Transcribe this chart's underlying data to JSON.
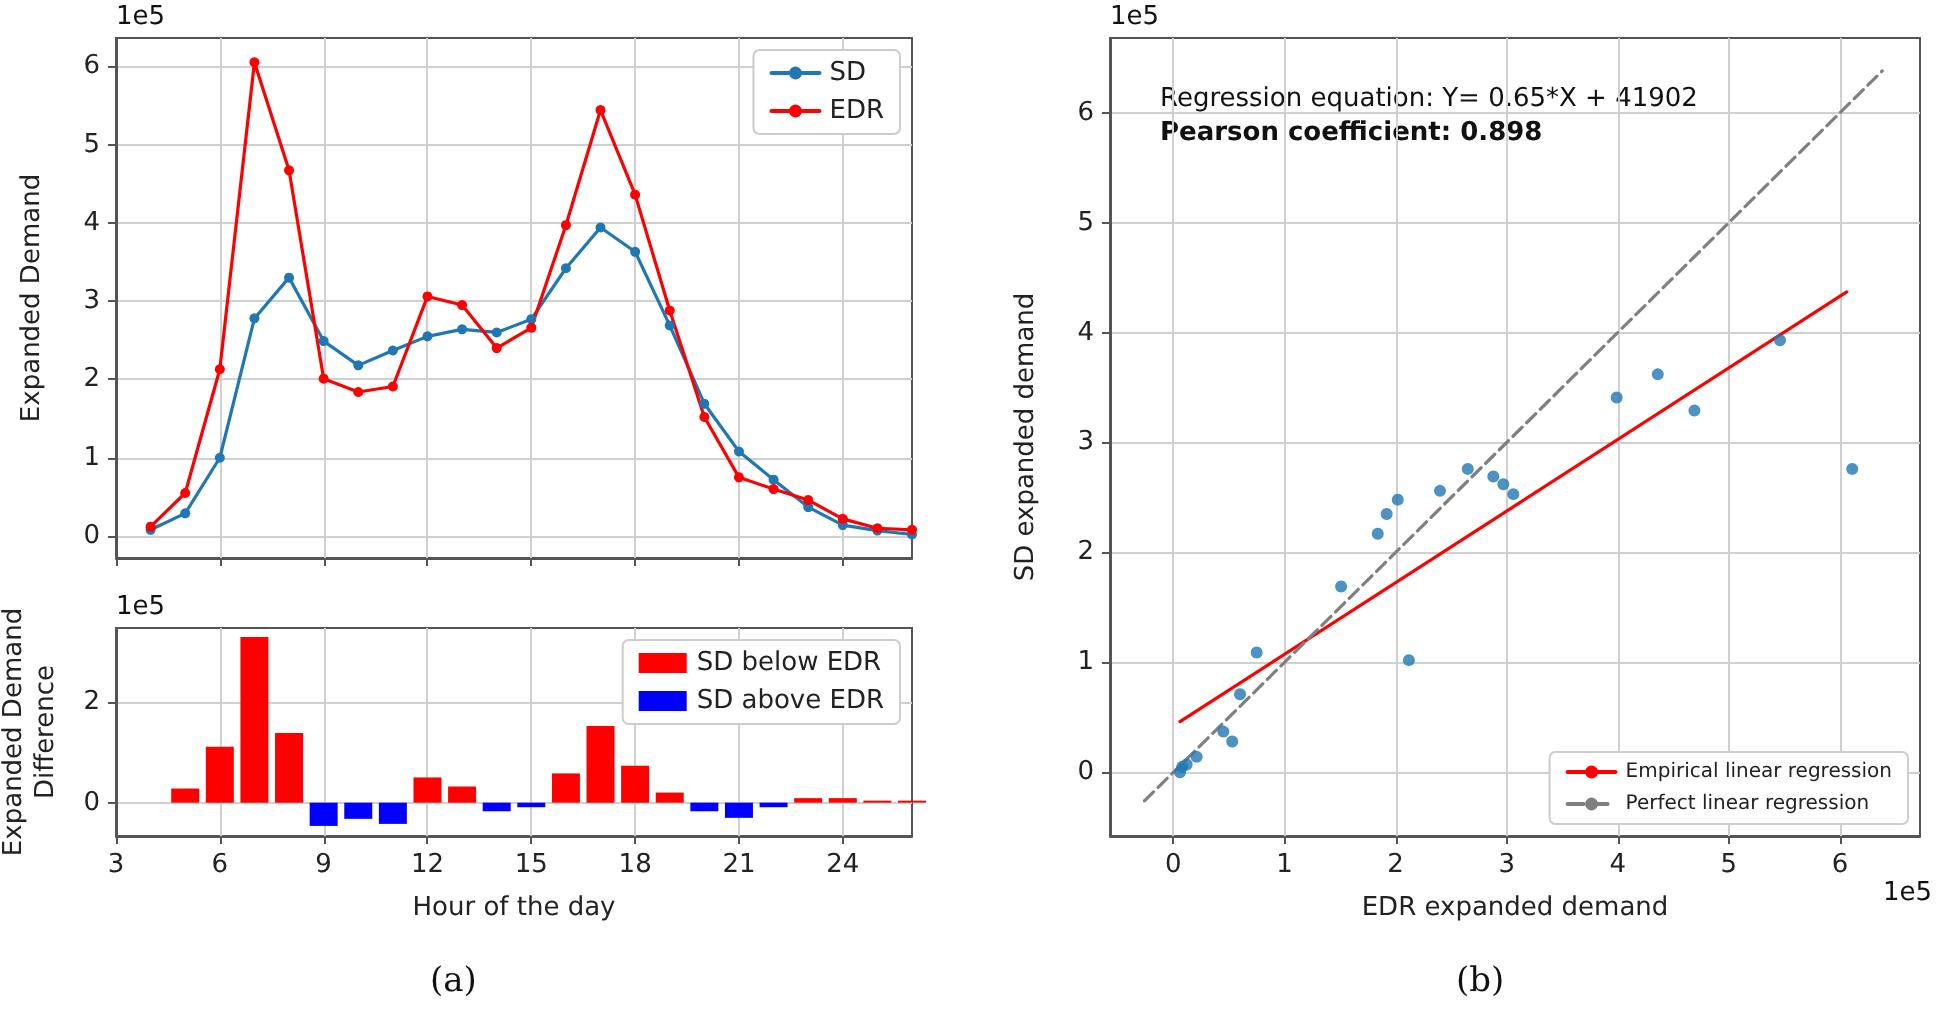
{
  "chart_data": [
    {
      "type": "line",
      "ylabel": "Expanded Demand",
      "x": [
        4,
        5,
        6,
        7,
        8,
        9,
        10,
        11,
        12,
        13,
        14,
        15,
        16,
        17,
        18,
        19,
        20,
        21,
        22,
        23,
        24,
        25,
        26
      ],
      "xlim": [
        3,
        26
      ],
      "xticks": [
        3,
        6,
        9,
        12,
        15,
        18,
        21,
        24
      ],
      "ylim": [
        -0.28,
        6.36
      ],
      "yticks": [
        0,
        1,
        2,
        3,
        4,
        5,
        6
      ],
      "tick_labels": "y",
      "grid": true,
      "legend": "top right",
      "marker": "circle",
      "annotations": [
        "1e5"
      ],
      "series": [
        {
          "name": "SD",
          "color": "#1f77b4",
          "values": [
            0.08,
            0.29,
            1.0,
            2.78,
            3.3,
            2.49,
            2.18,
            2.37,
            2.55,
            2.64,
            2.6,
            2.77,
            3.42,
            3.94,
            3.63,
            2.69,
            1.69,
            1.08,
            0.72,
            0.37,
            0.14,
            0.07,
            0.02
          ]
        },
        {
          "name": "EDR",
          "color": "#ff0000",
          "values": [
            0.12,
            0.55,
            2.13,
            6.05,
            4.67,
            2.01,
            1.84,
            1.91,
            3.06,
            2.95,
            2.4,
            2.66,
            3.97,
            5.44,
            4.36,
            2.88,
            1.52,
            0.75,
            0.6,
            0.46,
            0.22,
            0.1,
            0.08
          ]
        }
      ]
    },
    {
      "type": "bar",
      "ylabel": "Expanded Demand\nDifference",
      "xlabel": "Hour of the day",
      "x": [
        5,
        6,
        7,
        8,
        9,
        10,
        11,
        12,
        13,
        14,
        15,
        16,
        17,
        18,
        19,
        20,
        21,
        22,
        23,
        24,
        25,
        26
      ],
      "xlim": [
        3,
        26
      ],
      "xticks": [
        3,
        6,
        9,
        12,
        15,
        18,
        21,
        24
      ],
      "ylim": [
        -0.66,
        3.46
      ],
      "yticks": [
        0,
        2
      ],
      "grid": true,
      "legend": "top right",
      "annotations": [
        "1e5",
        "(a)"
      ],
      "series": [
        {
          "name": "SD below EDR",
          "color": "#ff0000",
          "values": [
            0.28,
            1.11,
            3.28,
            1.38,
            null,
            null,
            null,
            0.5,
            0.32,
            null,
            null,
            0.58,
            1.52,
            0.73,
            0.2,
            null,
            null,
            null,
            0.09,
            0.09,
            0.04,
            0.04
          ]
        },
        {
          "name": "SD above EDR",
          "color": "#0000ff",
          "values": [
            null,
            null,
            null,
            null,
            -0.46,
            -0.32,
            -0.42,
            null,
            null,
            -0.17,
            -0.09,
            null,
            null,
            null,
            null,
            -0.17,
            -0.3,
            -0.09,
            null,
            null,
            null,
            null
          ]
        }
      ]
    },
    {
      "type": "scatter",
      "xlabel": "EDR expanded demand",
      "ylabel": "SD expanded demand",
      "xlim": [
        -0.57,
        6.72
      ],
      "xticks": [
        0,
        1,
        2,
        3,
        4,
        5,
        6
      ],
      "ylim": [
        -0.58,
        6.68
      ],
      "yticks": [
        0,
        1,
        2,
        3,
        4,
        5,
        6
      ],
      "grid": true,
      "legend": "bottom right",
      "marker": "circle",
      "annotations": [
        "1e5",
        "Regression equation: Y= 0.65*X + 41902",
        "Pearson coefficient: 0.898",
        "1e5",
        "(b)"
      ],
      "series": [
        {
          "color": "#1f77b4",
          "x": [
            0.06,
            0.08,
            0.12,
            0.21,
            0.53,
            0.45,
            0.6,
            0.75,
            2.12,
            1.51,
            1.84,
            1.92,
            2.02,
            2.4,
            2.65,
            2.88,
            2.97,
            3.06,
            3.99,
            4.36,
            4.69,
            5.46,
            6.11
          ],
          "values": [
            0.0,
            0.05,
            0.07,
            0.14,
            0.28,
            0.37,
            0.71,
            1.09,
            1.02,
            1.69,
            2.17,
            2.35,
            2.48,
            2.56,
            2.76,
            2.69,
            2.62,
            2.53,
            3.41,
            3.62,
            3.29,
            3.93,
            2.76
          ]
        },
        {
          "type": "line",
          "name": "Empirical linear regression",
          "color": "#ff0000",
          "marker": "none",
          "x": [
            0.06,
            6.06
          ],
          "values": [
            0.46,
            4.37
          ]
        },
        {
          "type": "line",
          "name": "Perfect linear regression",
          "color": "#808080",
          "marker": "none",
          "line_style": "dashed",
          "x": [
            -0.26,
            6.38
          ],
          "values": [
            -0.26,
            6.38
          ]
        }
      ]
    }
  ]
}
